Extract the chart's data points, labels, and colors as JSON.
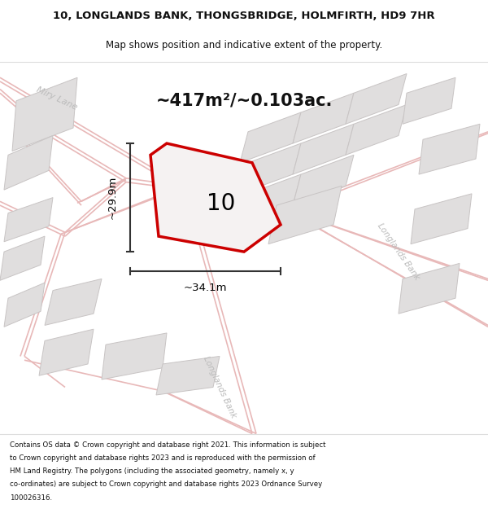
{
  "title_line1": "10, LONGLANDS BANK, THONGSBRIDGE, HOLMFIRTH, HD9 7HR",
  "title_line2": "Map shows position and indicative extent of the property.",
  "area_text": "~417m²/~0.103ac.",
  "width_label": "~34.1m",
  "height_label": "~29.9m",
  "property_number": "10",
  "footer_text": "Contains OS data © Crown copyright and database right 2021. This information is subject to Crown copyright and database rights 2023 and is reproduced with the permission of HM Land Registry. The polygons (including the associated geometry, namely x, y co-ordinates) are subject to Crown copyright and database rights 2023 Ordnance Survey 100026316.",
  "map_bg": "#f7f5f5",
  "road_line_color": "#e8b8b8",
  "road_center_color": "#e0d0d0",
  "building_fill": "#e0dede",
  "building_edge": "#c8c4c4",
  "property_edge": "#cc0000",
  "property_fill": "#f5f2f2",
  "dim_color": "#333333",
  "road_label_color": "#bbbbbb",
  "title_color": "#111111",
  "area_color": "#111111"
}
